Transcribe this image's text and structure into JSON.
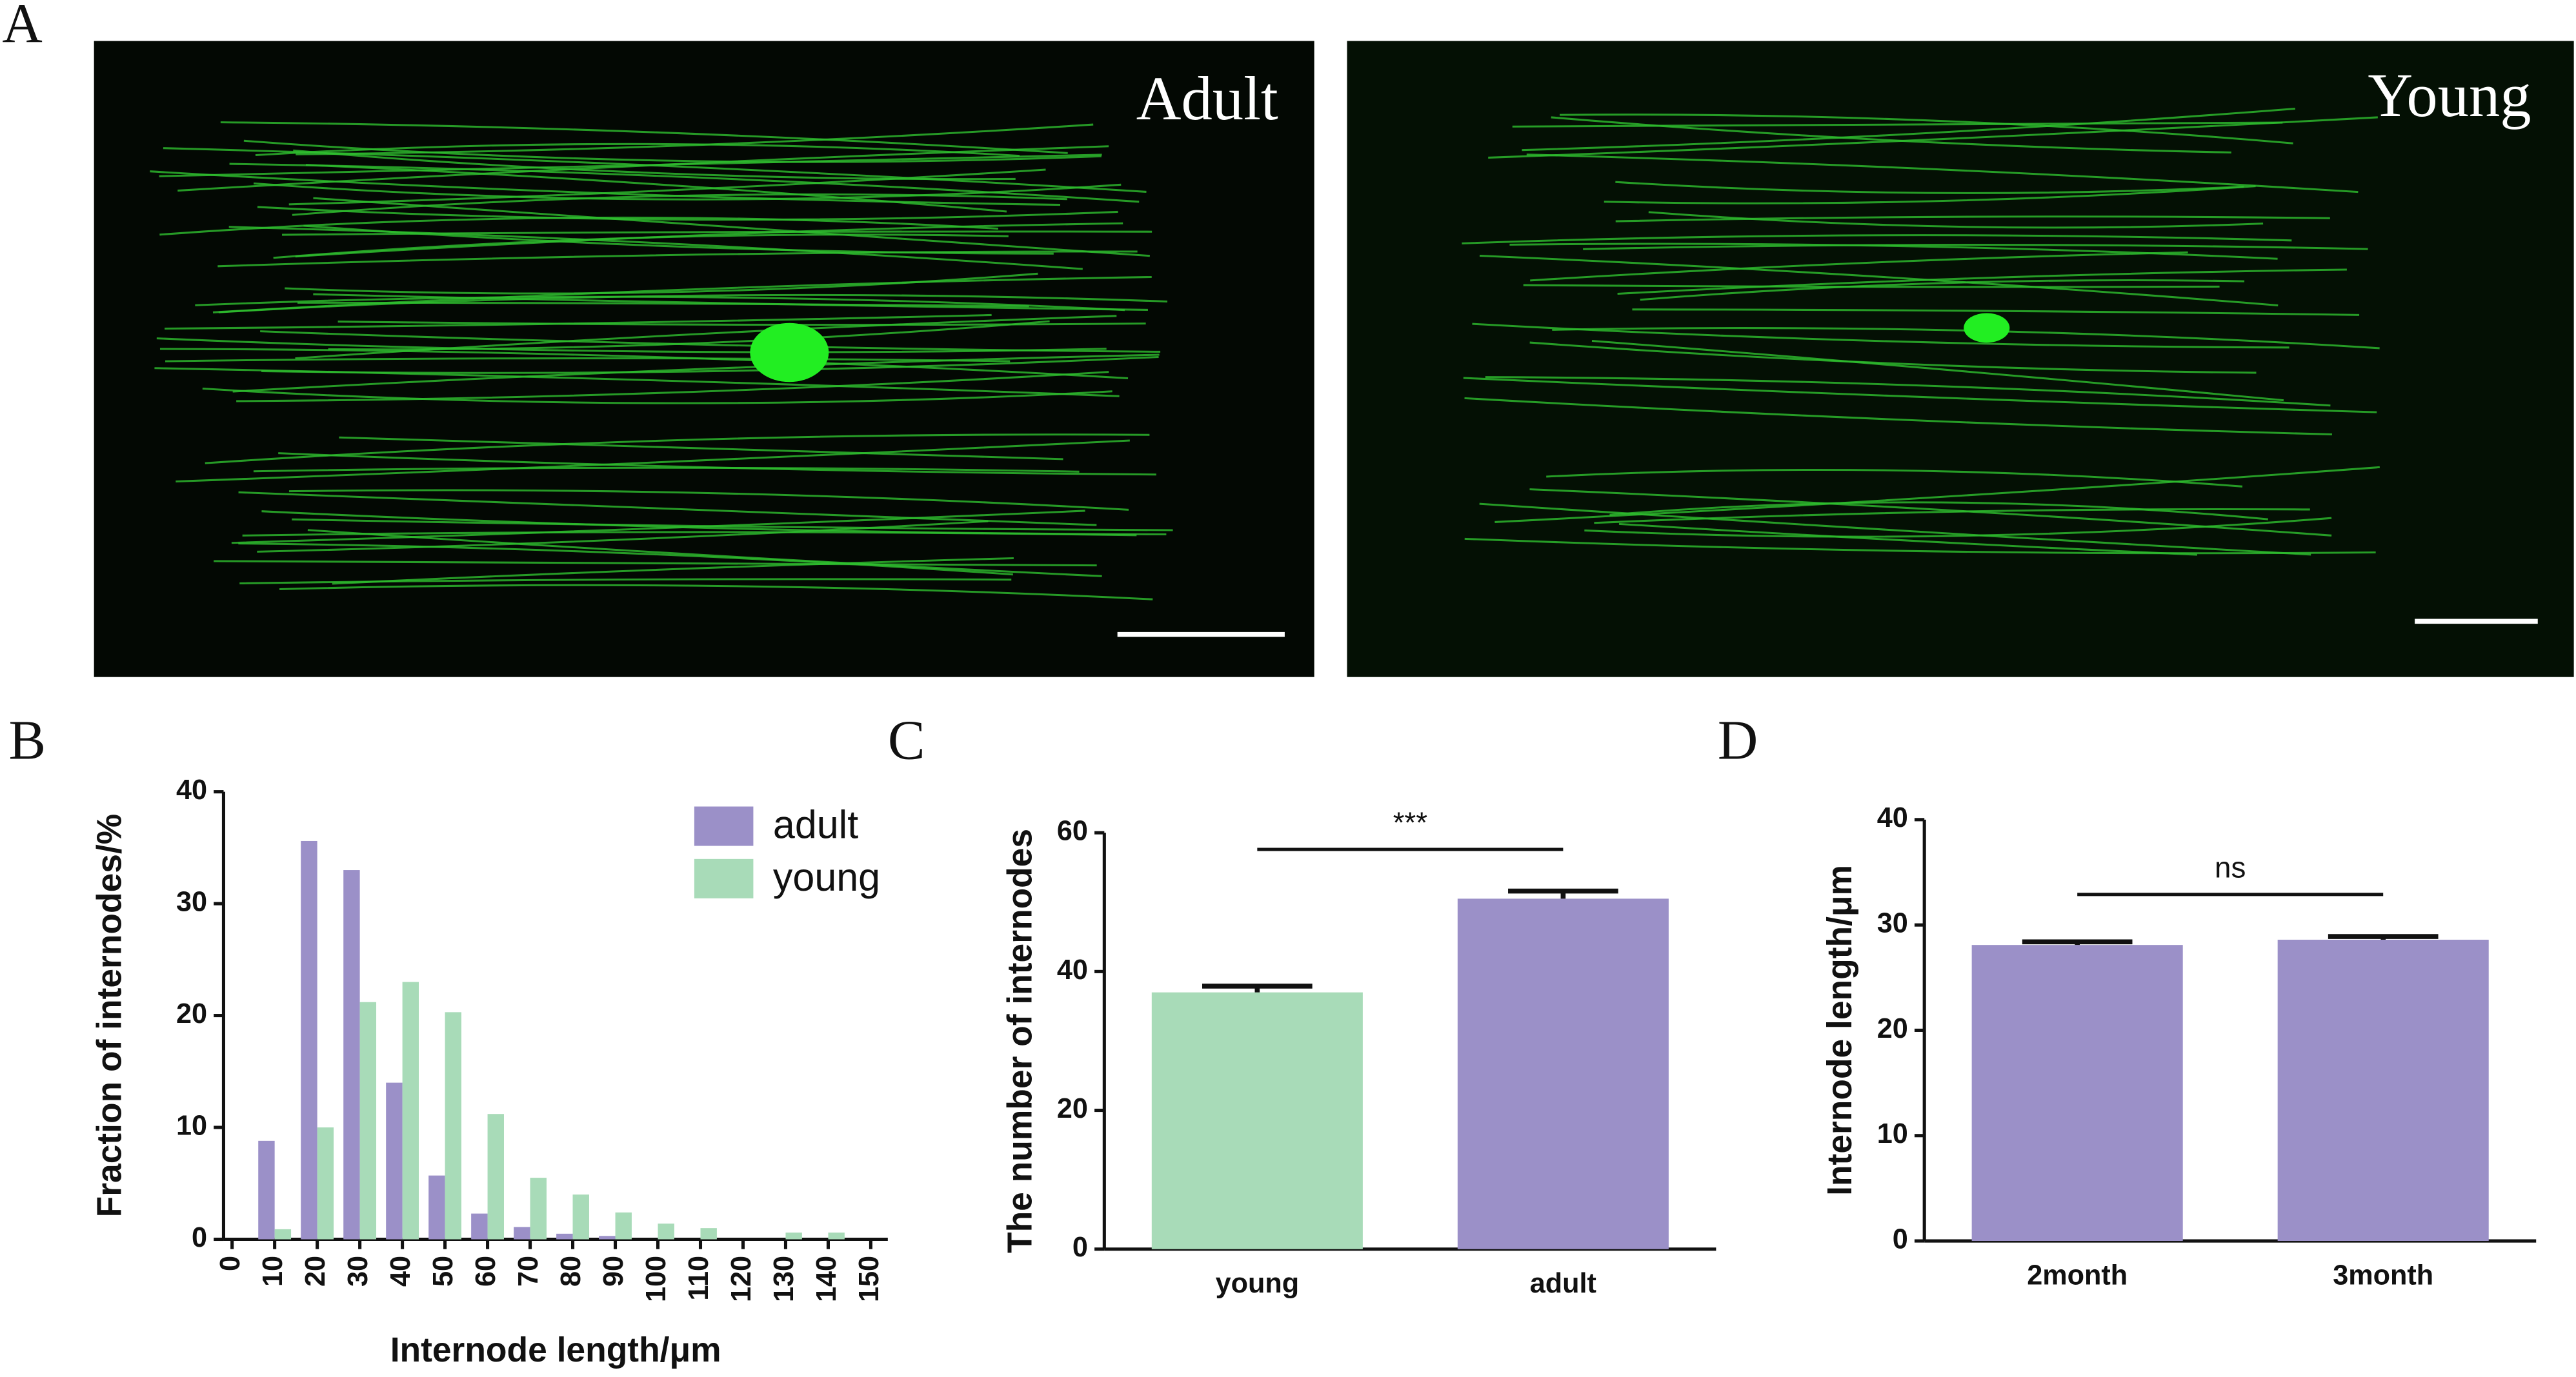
{
  "panel_labels": [
    "A",
    "B",
    "C",
    "D"
  ],
  "images": [
    {
      "label": "Adult"
    },
    {
      "label": "Young"
    }
  ],
  "chart_data": [
    {
      "type": "bar",
      "x_label": "Internode length/μm",
      "y_label": "Fraction of internodes/%",
      "x": [
        0,
        10,
        20,
        30,
        40,
        50,
        60,
        70,
        80,
        90,
        100,
        110,
        120,
        130,
        140,
        150
      ],
      "series": [
        {
          "name": "adult",
          "color": "#9b90c8",
          "values": [
            0,
            8.8,
            35.6,
            33,
            14,
            5.7,
            2.3,
            1.1,
            0.5,
            0.3,
            0,
            0,
            0,
            0,
            0,
            0
          ]
        },
        {
          "name": "young",
          "color": "#a8dbb8",
          "values": [
            0,
            0.9,
            10,
            21.2,
            23,
            20.3,
            11.2,
            5.5,
            4,
            2.4,
            1.4,
            1,
            0,
            0.6,
            0.6,
            0
          ]
        }
      ],
      "xlim": [
        -2,
        154
      ],
      "xticks": [
        0,
        10,
        20,
        30,
        40,
        50,
        60,
        70,
        80,
        90,
        100,
        110,
        120,
        130,
        140,
        150
      ],
      "ylim": [
        0,
        40
      ],
      "yticks": [
        0,
        10,
        20,
        30,
        40
      ],
      "legend": "top-right"
    },
    {
      "type": "errorbar",
      "y_label": "The number of internodes",
      "annotation": "***",
      "categories": [
        "young",
        "adult"
      ],
      "values": [
        37,
        50.5
      ],
      "errors": [
        0.9,
        1.1
      ],
      "colors": [
        "#a8dbb8",
        "#9b90c8"
      ],
      "ylim": [
        0,
        60
      ],
      "yticks": [
        0,
        20,
        40,
        60
      ]
    },
    {
      "type": "errorbar",
      "y_label": "Internode length/μm",
      "annotation": "ns",
      "categories": [
        "2month",
        "3month"
      ],
      "values": [
        28.1,
        28.6
      ],
      "errors": [
        0.3,
        0.3
      ],
      "colors": [
        "#9b90c8",
        "#9b90c8"
      ],
      "ylim": [
        0,
        40
      ],
      "yticks": [
        0,
        10,
        20,
        30,
        40
      ]
    }
  ]
}
